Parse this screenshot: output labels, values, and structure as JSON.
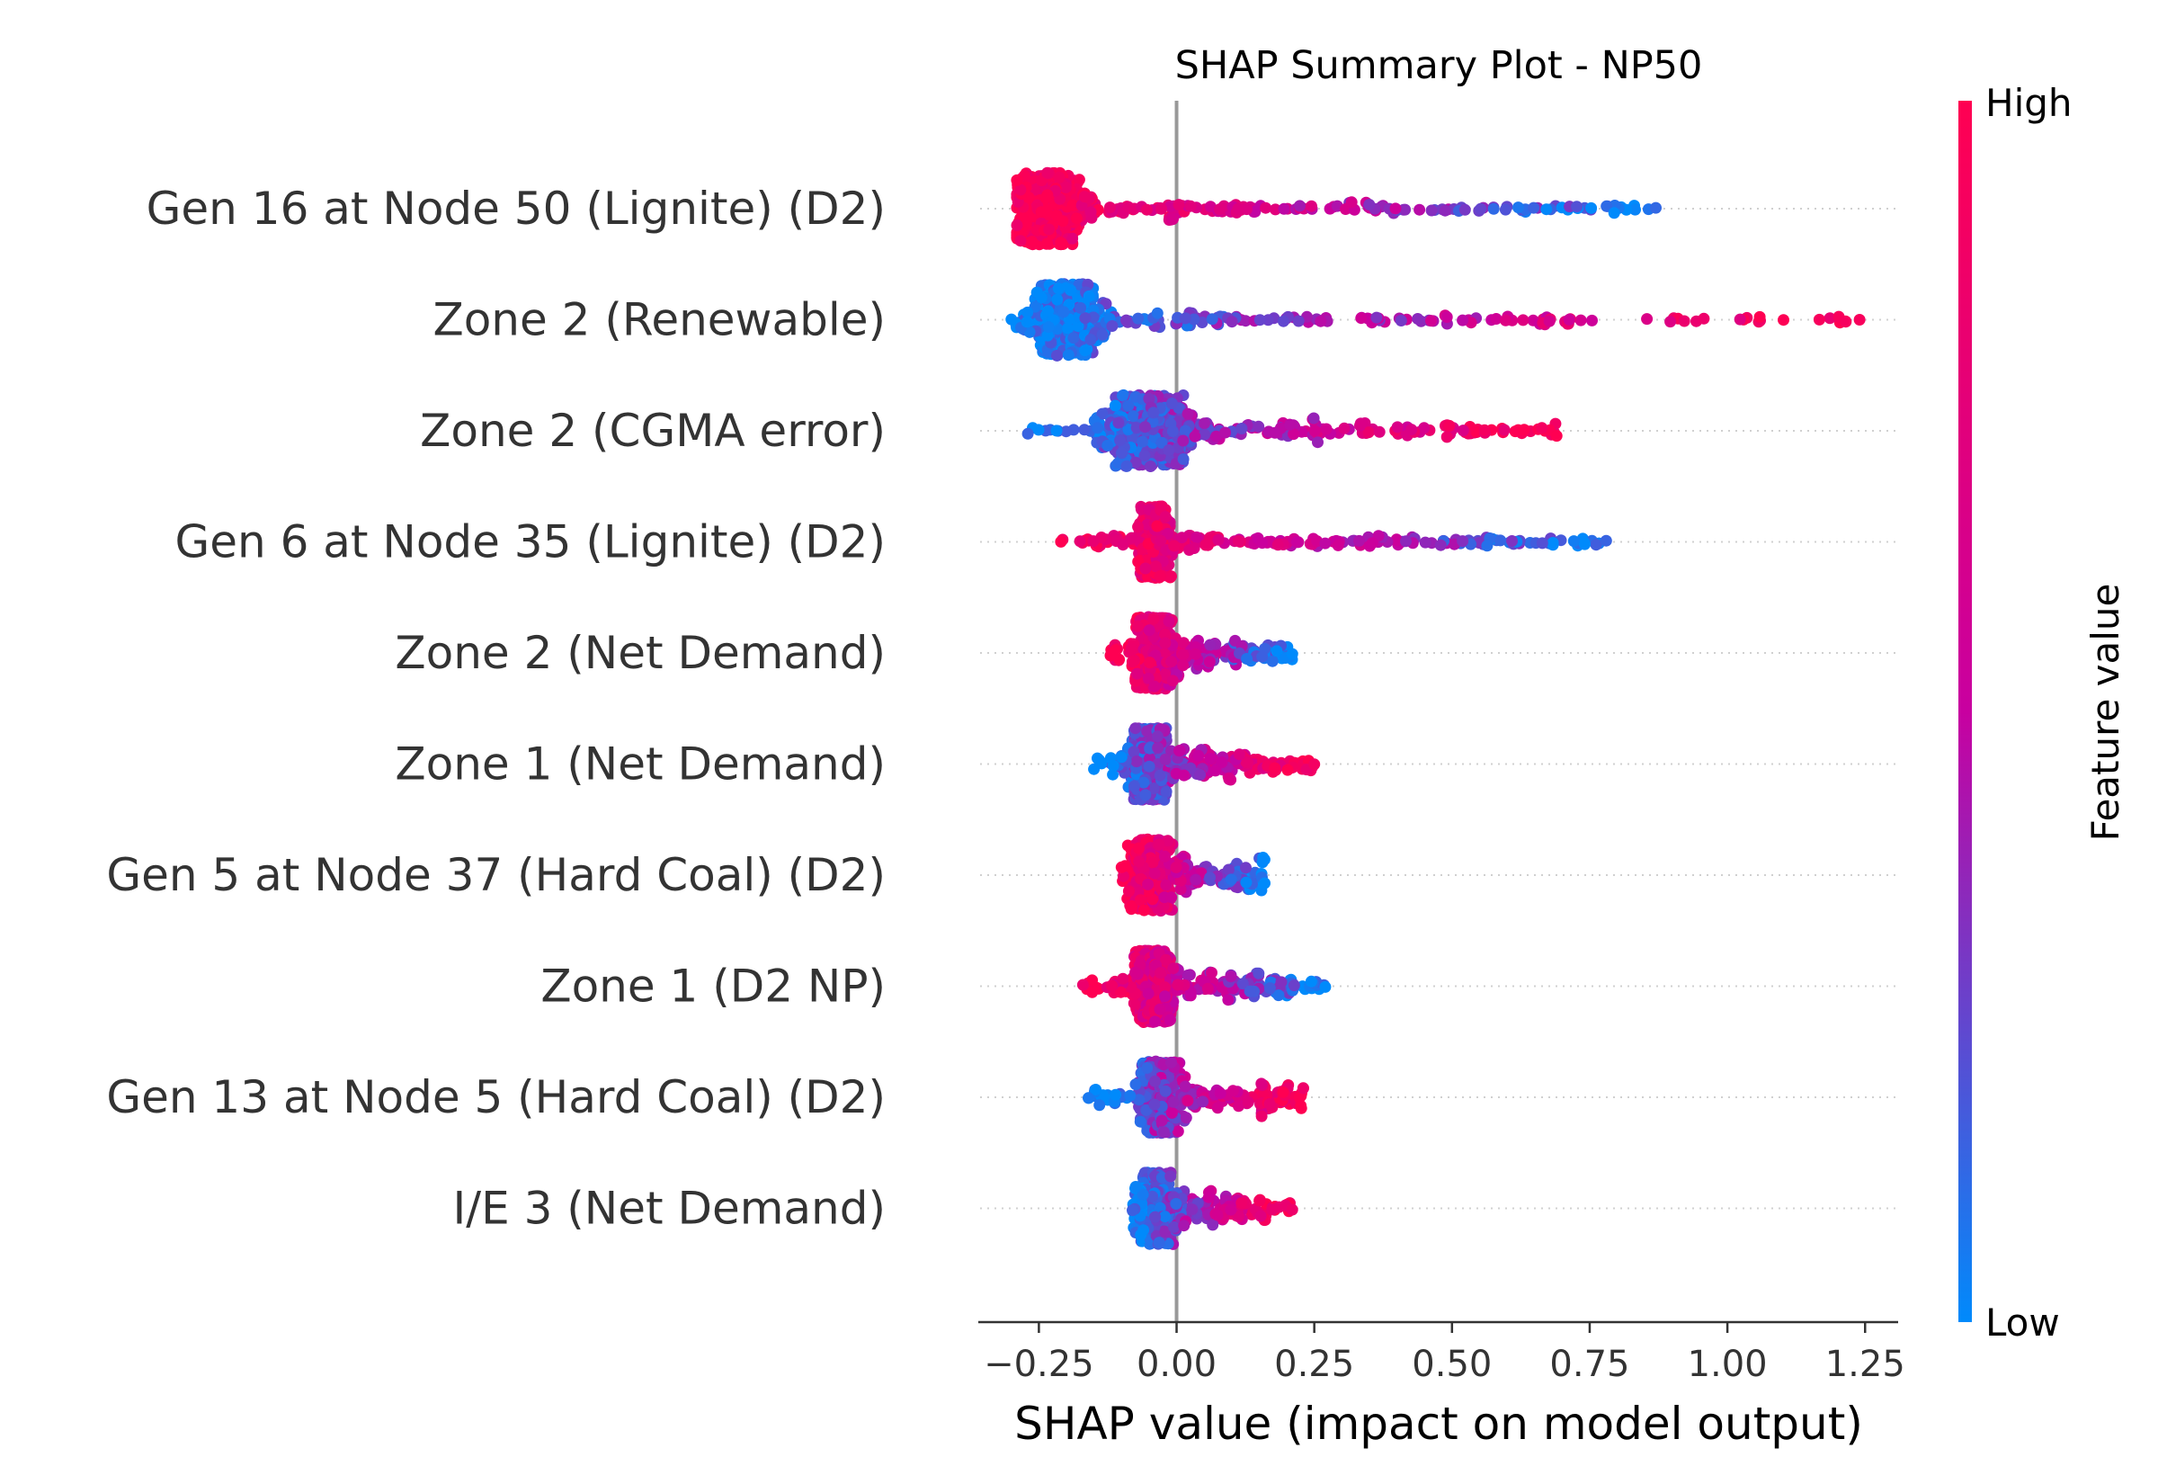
{
  "chart_data": {
    "type": "scatter",
    "subtype": "shap-beeswarm",
    "title": "SHAP Summary Plot - NP50",
    "xlabel": "SHAP value (impact on model output)",
    "xlim": [
      -0.36,
      1.31
    ],
    "xticks": [
      -0.25,
      0.0,
      0.25,
      0.5,
      0.75,
      1.0,
      1.25
    ],
    "xtick_labels": [
      "−0.25",
      "0.00",
      "0.25",
      "0.50",
      "0.75",
      "1.00",
      "1.25"
    ],
    "grid": false,
    "zero_line": true,
    "colorbar": {
      "label": "Feature value",
      "high_label": "High",
      "low_label": "Low",
      "low_color": "#008afb",
      "mid_color": "#c800a0",
      "high_color": "#ff0052"
    },
    "features": [
      {
        "name": "Gen 16 at Node 50 (Lignite) (D2)",
        "min": -0.29,
        "max": 0.87,
        "peak": -0.23,
        "width": 0.07,
        "high_side": "negative"
      },
      {
        "name": "Zone 2 (Renewable)",
        "min": -0.3,
        "max": 1.24,
        "peak": -0.2,
        "width": 0.07,
        "high_side": "positive"
      },
      {
        "name": "Zone 2 (CGMA error)",
        "min": -0.27,
        "max": 0.69,
        "peak": -0.05,
        "width": 0.1,
        "high_side": "positive"
      },
      {
        "name": "Gen 6 at Node 35 (Lignite) (D2)",
        "min": -0.21,
        "max": 0.78,
        "peak": -0.04,
        "width": 0.03,
        "high_side": "negative"
      },
      {
        "name": "Zone 2 (Net Demand)",
        "min": -0.12,
        "max": 0.21,
        "peak": -0.04,
        "width": 0.04,
        "high_side": "negative"
      },
      {
        "name": "Zone 1 (Net Demand)",
        "min": -0.15,
        "max": 0.25,
        "peak": -0.05,
        "width": 0.04,
        "high_side": "positive"
      },
      {
        "name": "Gen 5 at Node 37 (Hard Coal) (D2)",
        "min": -0.1,
        "max": 0.16,
        "peak": -0.05,
        "width": 0.04,
        "high_side": "negative"
      },
      {
        "name": "Zone 1 (D2 NP)",
        "min": -0.17,
        "max": 0.27,
        "peak": -0.04,
        "width": 0.04,
        "high_side": "negative"
      },
      {
        "name": "Gen 13 at Node 5 (Hard Coal) (D2)",
        "min": -0.16,
        "max": 0.23,
        "peak": -0.03,
        "width": 0.04,
        "high_side": "positive"
      },
      {
        "name": "I/E 3 (Net Demand)",
        "min": -0.08,
        "max": 0.21,
        "peak": -0.04,
        "width": 0.03,
        "high_side": "positive"
      }
    ]
  }
}
